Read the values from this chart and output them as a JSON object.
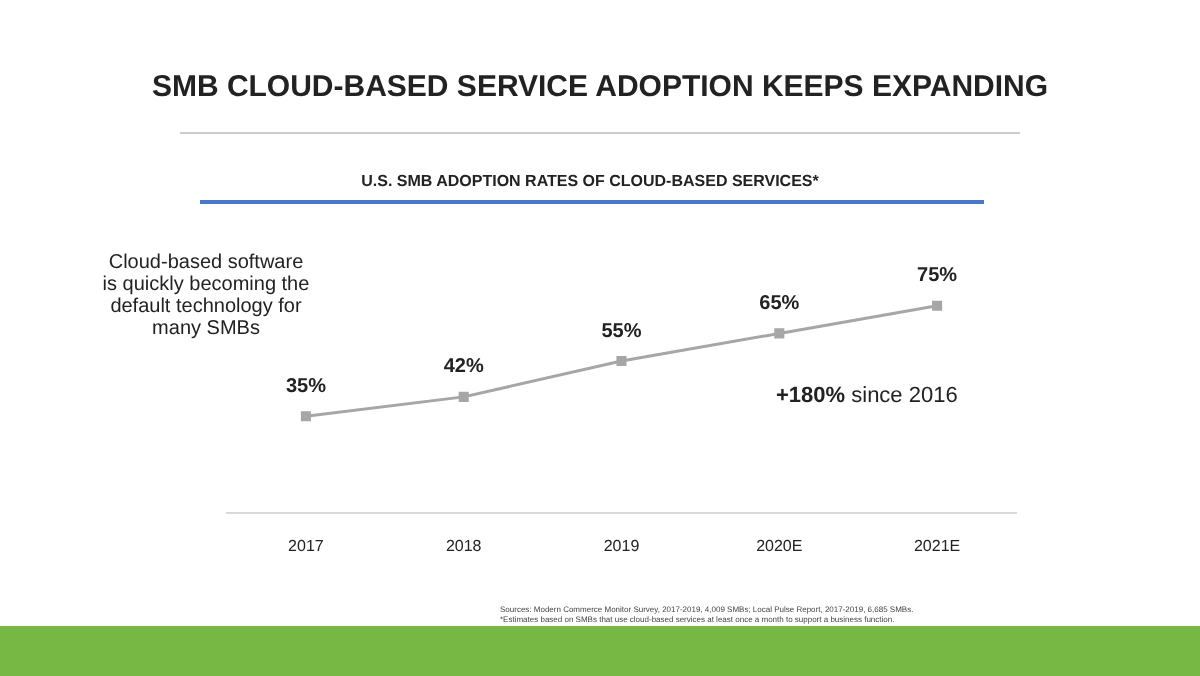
{
  "chart_data": {
    "type": "line",
    "title": "SMB CLOUD-BASED SERVICE ADOPTION KEEPS EXPANDING",
    "subtitle": "U.S. SMB ADOPTION RATES OF CLOUD-BASED SERVICES*",
    "categories": [
      "2017",
      "2018",
      "2019",
      "2020E",
      "2021E"
    ],
    "series": [
      {
        "color": "#a6a6a6",
        "values": [
          35,
          42,
          55,
          65,
          75
        ],
        "value_labels": [
          "35%",
          "42%",
          "55%",
          "65%",
          "75%"
        ]
      }
    ],
    "marker": "square",
    "grid": false,
    "legend": false,
    "tick_labels": "x",
    "annotations": [
      "Cloud-based software is quickly becoming the default technology for many SMBs",
      "+180% since 2016",
      "Sources: Modern Commerce Monitor Survey, 2017-2019, 4,009 SMBs; Local Pulse Report, 2017-2019, 6,685 SMBs.",
      "*Estimates based on SMBs that use cloud-based services at least once a month to support a business function."
    ]
  }
}
